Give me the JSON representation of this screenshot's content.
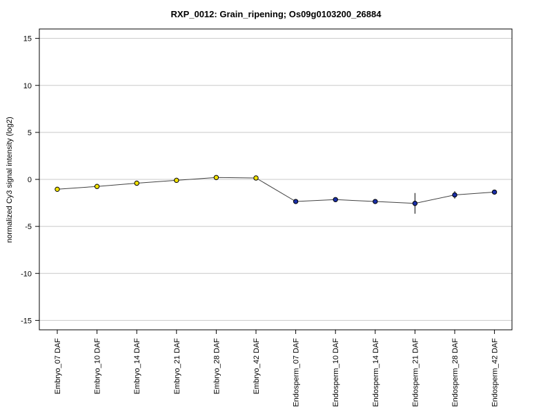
{
  "chart_data": {
    "type": "line",
    "title": "RXP_0012: Grain_ripening; Os09g0103200_26884",
    "xlabel": "",
    "ylabel": "normalized Cy3 signal intensity (log2)",
    "ylim": [
      -16,
      16
    ],
    "yticks": [
      15,
      10,
      5,
      0,
      -5,
      -10,
      -15
    ],
    "ytick_labels": [
      "15",
      "10",
      "5",
      "0",
      "-5",
      "-10",
      "-15"
    ],
    "grid": true,
    "categories": [
      "Embryo_07 DAF",
      "Embryo_10 DAF",
      "Embryo_14 DAF",
      "Embryo_21 DAF",
      "Embryo_28 DAF",
      "Embryo_42 DAF",
      "Endosperm_07 DAF",
      "Endosperm_10 DAF",
      "Endosperm_14 DAF",
      "Endosperm_21 DAF",
      "Endosperm_28 DAF",
      "Endosperm_42 DAF"
    ],
    "series": [
      {
        "values": [
          -1.05,
          -0.75,
          -0.4,
          -0.1,
          0.2,
          0.15,
          -2.35,
          -2.15,
          -2.35,
          -2.55,
          -1.65,
          -1.35
        ],
        "errors": [
          0.1,
          0.1,
          0.15,
          0.1,
          0.1,
          0.1,
          0.2,
          0.1,
          0.1,
          1.1,
          0.4,
          0.1
        ],
        "point_colors": [
          "#f2e200",
          "#f2e200",
          "#f2e200",
          "#f2e200",
          "#f2e200",
          "#f2e200",
          "#1a2fa8",
          "#1a2fa8",
          "#1a2fa8",
          "#1a2fa8",
          "#1a2fa8",
          "#1a2fa8"
        ]
      }
    ]
  },
  "colors": {
    "line": "#404040",
    "grid": "#c8c8c8",
    "embryo_point": "#f2e200",
    "endosperm_point": "#1a2fa8"
  }
}
